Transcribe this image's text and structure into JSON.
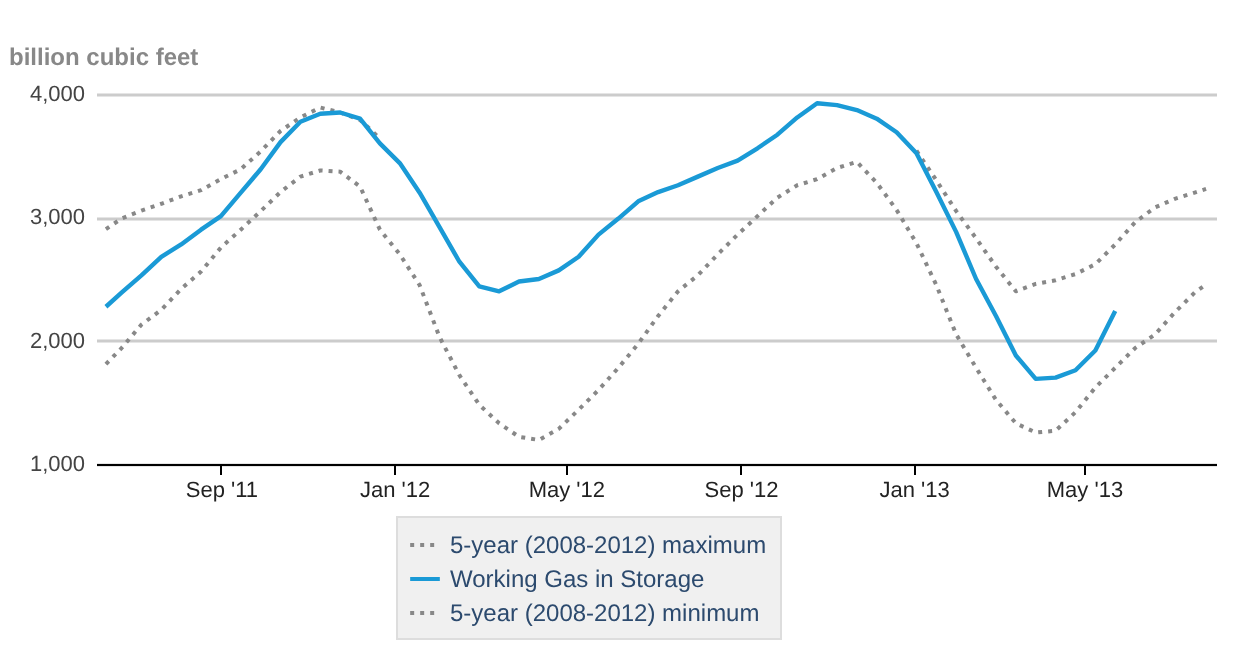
{
  "chart_data": {
    "type": "line",
    "ylabel": "billion cubic feet",
    "x": [
      "2011-06-12",
      "2011-06-23",
      "2011-07-07",
      "2011-07-21",
      "2011-08-04",
      "2011-08-18",
      "2011-09-01",
      "2011-09-15",
      "2011-09-29",
      "2011-10-13",
      "2011-10-27",
      "2011-11-10",
      "2011-11-24",
      "2011-12-08",
      "2011-12-22",
      "2012-01-05",
      "2012-01-19",
      "2012-02-02",
      "2012-02-16",
      "2012-03-01",
      "2012-03-15",
      "2012-03-29",
      "2012-04-12",
      "2012-04-26",
      "2012-05-10",
      "2012-05-24",
      "2012-06-07",
      "2012-06-21",
      "2012-07-05",
      "2012-07-19",
      "2012-08-02",
      "2012-08-16",
      "2012-08-30",
      "2012-09-13",
      "2012-09-27",
      "2012-10-11",
      "2012-10-25",
      "2012-11-08",
      "2012-11-22",
      "2012-12-06",
      "2012-12-20",
      "2013-01-03",
      "2013-01-17",
      "2013-01-31",
      "2013-02-14",
      "2013-02-28",
      "2013-03-14",
      "2013-03-28",
      "2013-04-11",
      "2013-04-25",
      "2013-05-09",
      "2013-05-23",
      "2013-06-06",
      "2013-06-20",
      "2013-07-04",
      "2013-07-18",
      "2013-07-26"
    ],
    "series": [
      {
        "name": "5-year (2008-2012) maximum",
        "color": "#888888",
        "line_style": "dotted",
        "values": [
          2905,
          2990,
          3055,
          3110,
          3170,
          3220,
          3310,
          3390,
          3535,
          3700,
          3810,
          3890,
          3850,
          3790,
          3640,
          null,
          null,
          null,
          null,
          null,
          null,
          null,
          null,
          null,
          null,
          null,
          null,
          null,
          null,
          null,
          null,
          null,
          null,
          null,
          null,
          null,
          null,
          null,
          null,
          null,
          null,
          3540,
          3300,
          3050,
          2830,
          2600,
          2400,
          2460,
          2490,
          2540,
          2620,
          2780,
          2960,
          3080,
          3150,
          3200,
          3230
        ]
      },
      {
        "name": "Working Gas in Storage",
        "color": "#1a9ad6",
        "line_style": "solid",
        "values": [
          2275,
          2390,
          2530,
          2680,
          2780,
          2900,
          3010,
          3200,
          3390,
          3610,
          3775,
          3840,
          3850,
          3800,
          3600,
          3440,
          3200,
          2920,
          2640,
          2440,
          2400,
          2480,
          2500,
          2570,
          2680,
          2860,
          2990,
          3130,
          3205,
          3260,
          3330,
          3400,
          3460,
          3560,
          3670,
          3810,
          3925,
          3910,
          3870,
          3800,
          3690,
          3520,
          3205,
          2880,
          2500,
          2200,
          1880,
          1690,
          1700,
          1760,
          1920,
          2240,
          null,
          null,
          null,
          null,
          null
        ]
      },
      {
        "name": "5-year (2008-2012) minimum",
        "color": "#888888",
        "line_style": "dotted",
        "values": [
          1810,
          1940,
          2130,
          2250,
          2420,
          2560,
          2755,
          2900,
          3050,
          3205,
          3330,
          3380,
          3370,
          3250,
          2900,
          2700,
          2450,
          2030,
          1720,
          1480,
          1330,
          1220,
          1195,
          1285,
          1440,
          1600,
          1780,
          1975,
          2200,
          2400,
          2530,
          2700,
          2860,
          3010,
          3160,
          3260,
          3310,
          3400,
          3450,
          3280,
          3060,
          2790,
          2450,
          2050,
          1780,
          1520,
          1330,
          1255,
          1270,
          1420,
          1620,
          1780,
          1940,
          2050,
          2230,
          2390,
          2455
        ]
      }
    ],
    "xlim": [
      "2011-06-05",
      "2013-08-02"
    ],
    "xticks": [
      {
        "value": "2011-09-01",
        "label": "Sep '11"
      },
      {
        "value": "2012-01-01",
        "label": "Jan '12"
      },
      {
        "value": "2012-05-01",
        "label": "May '12"
      },
      {
        "value": "2012-09-01",
        "label": "Sep '12"
      },
      {
        "value": "2013-01-01",
        "label": "Jan '13"
      },
      {
        "value": "2013-05-01",
        "label": "May '13"
      }
    ],
    "ylim": [
      1000,
      4000
    ],
    "yticks": [
      {
        "value": 1000,
        "label": "1,000"
      },
      {
        "value": 2000,
        "label": "2,000"
      },
      {
        "value": 3000,
        "label": "3,000"
      },
      {
        "value": 4000,
        "label": "4,000"
      }
    ],
    "grid": "y",
    "legend": "bottom"
  }
}
